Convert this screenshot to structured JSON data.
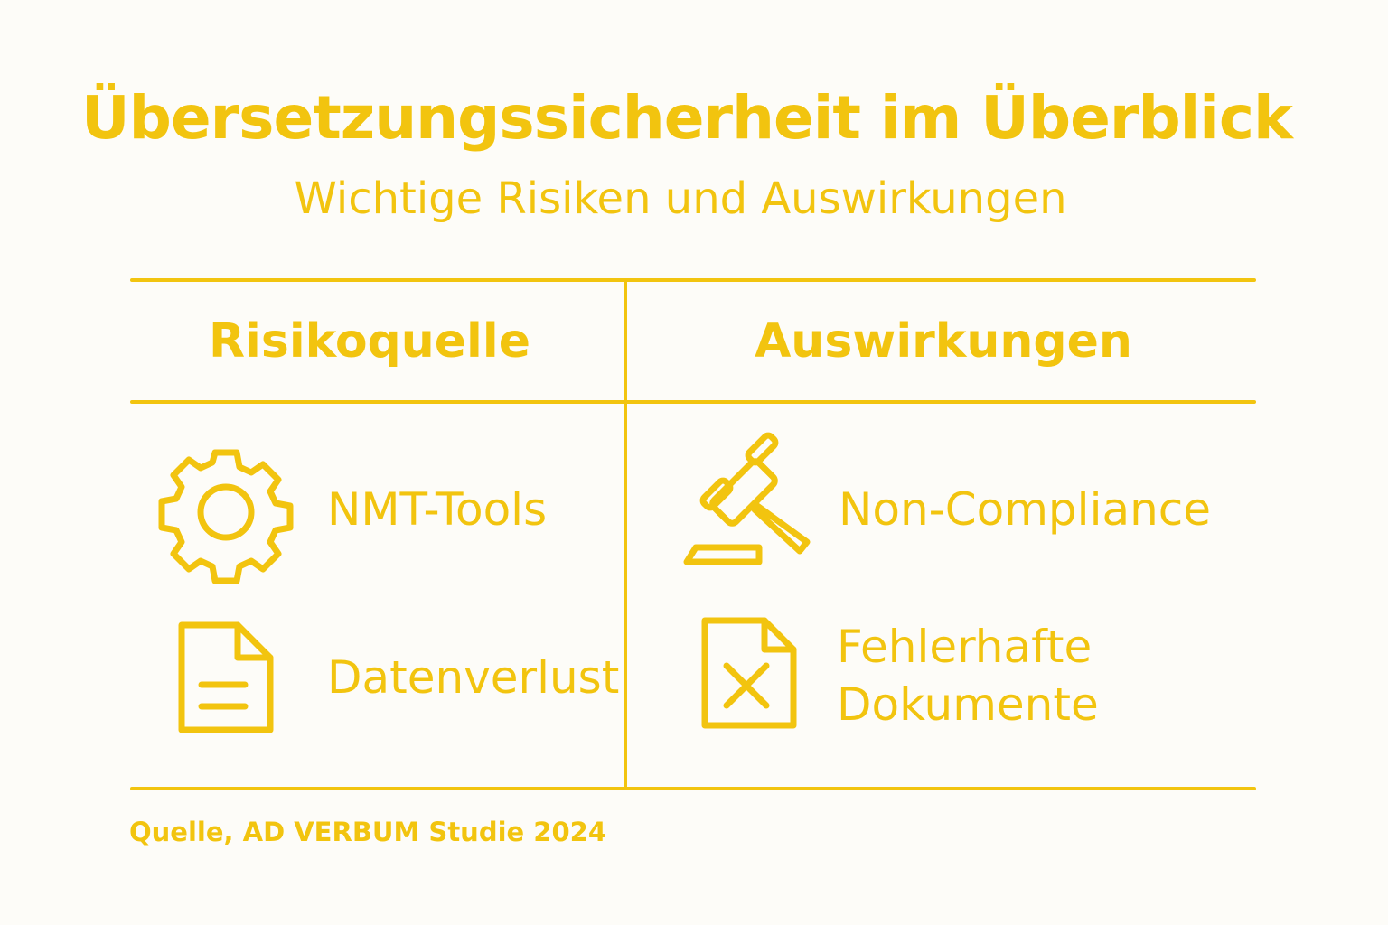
{
  "title": "Übersetzungssicherheit im Überblick",
  "subtitle": "Wichtige Risiken und Auswirkungen",
  "table": {
    "headers": [
      "Risikoquelle",
      "Auswirkungen"
    ],
    "rows": [
      {
        "risk": {
          "icon": "gear-icon",
          "label": "NMT-Tools"
        },
        "impact": {
          "icon": "gavel-icon",
          "label": "Non-Compliance"
        }
      },
      {
        "risk": {
          "icon": "document-icon",
          "label": "Datenverlust"
        },
        "impact": {
          "icon": "document-x-icon",
          "label_line1": "Fehlerhafte",
          "label_line2": "Dokumente"
        }
      }
    ]
  },
  "source": "Quelle, AD VERBUM Studie 2024",
  "colors": {
    "accent": "#f2c40f",
    "background": "#fdfcf8"
  }
}
